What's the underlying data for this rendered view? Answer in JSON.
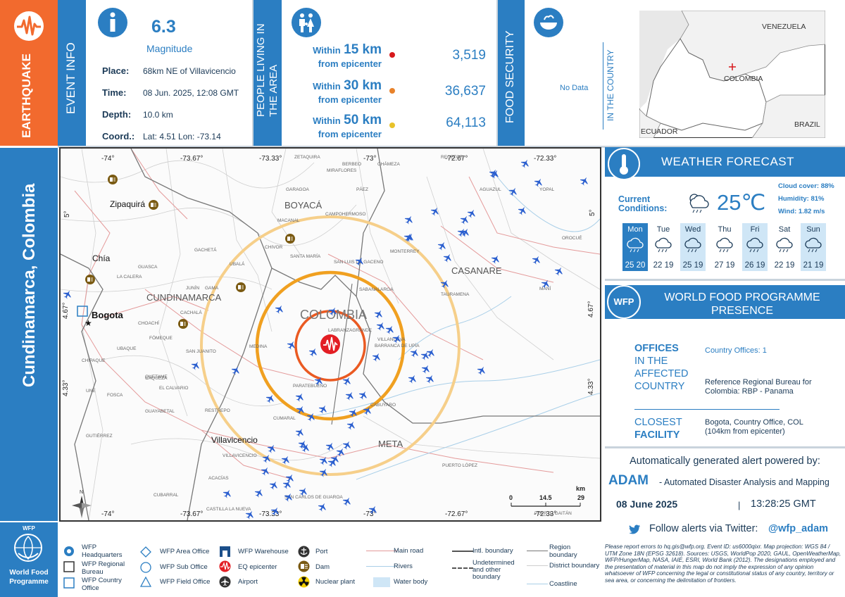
{
  "event_type": "EARTHQUAKE",
  "location_title": "Cundinamarca, Colombia",
  "event_info": {
    "section_label": "EVENT INFO",
    "magnitude": "6.3",
    "magnitude_label": "Magnitude",
    "place_label": "Place:",
    "place": "68km NE of Villavicencio",
    "time_label": "Time:",
    "time": "08 Jun. 2025, 12:08 GMT",
    "depth_label": "Depth:",
    "depth": "10.0 km",
    "coord_label": "Coord.:",
    "coord": "Lat: 4.51 Lon: -73.14"
  },
  "population": {
    "section_label_1": "PEOPLE LIVING IN",
    "section_label_2": "THE AREA",
    "rows": [
      {
        "within": "Within",
        "km": "15 km",
        "from": "from epicenter",
        "value": "3,519",
        "color": "#d7191c"
      },
      {
        "within": "Within",
        "km": "30 km",
        "from": "from epicenter",
        "value": "36,637",
        "color": "#e8822a"
      },
      {
        "within": "Within",
        "km": "50 km",
        "from": "from epicenter",
        "value": "64,113",
        "color": "#e8c22a"
      }
    ]
  },
  "food_security": {
    "section_label": "FOOD SECURITY",
    "value": "No Data",
    "sub_label": "IN THE COUNTRY"
  },
  "inset_map": {
    "labels": [
      "VENEZUELA",
      "COLOMBIA",
      "ECUADOR",
      "BRAZIL"
    ]
  },
  "map": {
    "country_label": "COLOMBIA",
    "regions": [
      "BOYACÁ",
      "CASANARE",
      "CUNDINAMARCA",
      "META"
    ],
    "cities": [
      "Zipaquirá",
      "Chía",
      "Bogota",
      "Villavicencio"
    ],
    "small_places": [
      "SAN LUIS DE GACENO",
      "SABANALARGA",
      "MEDINA",
      "PARATEBUENO",
      "CUMARAL",
      "RESTREPO",
      "VILLANUEVA",
      "BARRANCA DE UPÍA",
      "CABUYARO",
      "CHIVOR",
      "MACANAL",
      "GARAGOA",
      "PÁEZ",
      "MIRAFLORES",
      "CAMPOHERMOSO",
      "MONTERREY",
      "TAURAMENA",
      "AGUAZUL",
      "YOPAL",
      "OROCUÉ",
      "MANÍ",
      "PUERTO LÓPEZ",
      "PUERTO GAITÁN",
      "CACHALÁ",
      "GACHETÁ",
      "GAMA",
      "JUNÍN",
      "UBALÁ",
      "GUASCA",
      "LA CALERA",
      "UBAQUE",
      "FÓMEQUE",
      "CHOACHÍ",
      "QUETAME",
      "EL CALVARIO",
      "CÁQUEZA",
      "GUAYABETAL",
      "SAN JUANITO",
      "ACACÍAS",
      "CUBARRAL",
      "CASTILLA LA NUEVA",
      "SAN CARLOS DE GUAROA",
      "GUTIÉRREZ",
      "FOSCA",
      "UNE",
      "CHIPAQUE",
      "VILLAVICENCIO",
      "SANTA MARÍA",
      "RECETOR",
      "CHÁMEZA",
      "BERBEO",
      "ZETAQUIRA",
      "LABRANZAGRANDE"
    ],
    "lon_ticks": [
      "-74°",
      "-73.67°",
      "-73.33°",
      "-73°",
      "-72.67°",
      "-72.33°"
    ],
    "lat_ticks": [
      "5°",
      "4.67°",
      "4.33°"
    ],
    "scale_label": "km",
    "scale_ticks": [
      "0",
      "14.5",
      "29"
    ],
    "north": "N"
  },
  "weather": {
    "title": "WEATHER FORECAST",
    "current_label_1": "Current",
    "current_label_2": "Conditions:",
    "temp": "25℃",
    "cloud_cover": "Cloud cover: 88%",
    "humidity": "Humidity: 81%",
    "wind": "Wind: 1.82 m/s",
    "days": [
      {
        "name": "Mon",
        "temps": "25 20"
      },
      {
        "name": "Tue",
        "temps": "22 19"
      },
      {
        "name": "Wed",
        "temps": "25 19"
      },
      {
        "name": "Thu",
        "temps": "27 19"
      },
      {
        "name": "Fri",
        "temps": "26 19"
      },
      {
        "name": "Sat",
        "temps": "22 19"
      },
      {
        "name": "Sun",
        "temps": "21 19"
      }
    ]
  },
  "wfp": {
    "title_1": "WORLD FOOD PROGRAMME",
    "title_2": "PRESENCE",
    "badge": "WFP",
    "offices_1": "OFFICES",
    "offices_2": "IN THE",
    "offices_3": "AFFECTED",
    "offices_4": "COUNTRY",
    "country_offices": "Country Offices: 1",
    "regional_bureau": "Reference Regional Bureau for Colombia: RBP - Panama",
    "closest_1": "CLOSEST",
    "closest_2": "FACILITY",
    "closest_value": "Bogota, Country Office, COL (104km from epicenter)",
    "auto_alert": "Automatically generated alert powered by:",
    "adam": "ADAM",
    "adam_desc": "- Automated Disaster Analysis and Mapping",
    "date": "08 June 2025",
    "sep": "|",
    "time": "13:28:25 GMT",
    "twitter": "Follow alerts via Twitter:",
    "handle": "@wfp_adam",
    "logo_text_1": "WFP",
    "logo_text_2": "World Food",
    "logo_text_3": "Programme"
  },
  "legend": [
    {
      "key": "wfp-hq",
      "label": "WFP Headquarters"
    },
    {
      "key": "wfp-rb",
      "label": "WFP Regional Bureau"
    },
    {
      "key": "wfp-co",
      "label": "WFP Country Office"
    },
    {
      "key": "wfp-ao",
      "label": "WFP Area Office"
    },
    {
      "key": "wfp-so",
      "label": "WFP Sub Office"
    },
    {
      "key": "wfp-fo",
      "label": "WFP Field Office"
    },
    {
      "key": "warehouse",
      "label": "WFP Warehouse"
    },
    {
      "key": "epicenter",
      "label": "EQ epicenter"
    },
    {
      "key": "airport",
      "label": "Airport"
    },
    {
      "key": "port",
      "label": "Port"
    },
    {
      "key": "dam",
      "label": "Dam"
    },
    {
      "key": "nuclear",
      "label": "Nuclear plant"
    },
    {
      "key": "road",
      "label": "Main road"
    },
    {
      "key": "rivers",
      "label": "Rivers"
    },
    {
      "key": "water",
      "label": "Water body"
    },
    {
      "key": "intl",
      "label": "Intl. boundary"
    },
    {
      "key": "undet",
      "label": "Undetermined and other boundary"
    },
    {
      "key": "region",
      "label": "Region boundary"
    },
    {
      "key": "district",
      "label": "District boundary"
    },
    {
      "key": "coast",
      "label": "Coastline"
    }
  ],
  "disclaimer": "Please report errors to hq.gis@wfp.org. Event ID: us6000qixr. Map projection: WGS 84 / UTM Zone 18N (EPSG 32618). Sources: USGS, WorldPop 2020, GAUL, OpenWeatherMap, WFP/HungerMap, NASA, IAIE, ESRI, World Bank (2012). The designations employed and the presentation of material in this map do not imply the expression of any opinion whatsoever of WFP concerning the legal or constitutional status of any country, territory or sea area, or concerning the delimitation of frontiers."
}
